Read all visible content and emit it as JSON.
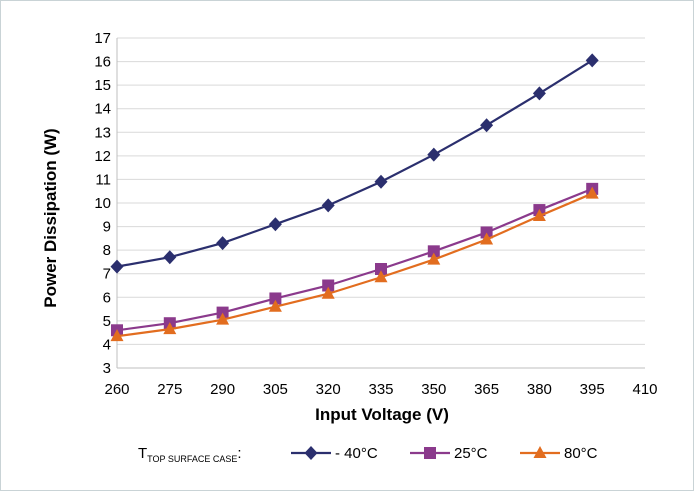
{
  "chart_data": {
    "type": "line",
    "xlabel": "Input Voltage (V)",
    "ylabel": "Power Dissipation (W)",
    "x": [
      260,
      275,
      290,
      305,
      320,
      335,
      350,
      365,
      380,
      395,
      410
    ],
    "xlim": [
      260,
      410
    ],
    "ylim": [
      3,
      17
    ],
    "yticks": [
      3,
      4,
      5,
      6,
      7,
      8,
      9,
      10,
      11,
      12,
      13,
      14,
      15,
      16,
      17
    ],
    "grid": "horizontal",
    "legend": {
      "placement": "bottom",
      "prefix_main": "T",
      "prefix_sub": "TOP SURFACE CASE",
      "prefix_suffix": ":"
    },
    "series": [
      {
        "name": "- 40°C",
        "color": "#2b2f6e",
        "marker": "diamond",
        "values": [
          7.3,
          7.7,
          8.3,
          9.1,
          9.9,
          10.9,
          12.05,
          13.3,
          14.65,
          16.05,
          null
        ]
      },
      {
        "name": "25°C",
        "color": "#8b3a8c",
        "marker": "square",
        "values": [
          4.6,
          4.9,
          5.35,
          5.95,
          6.5,
          7.2,
          7.95,
          8.75,
          9.7,
          10.6,
          null
        ]
      },
      {
        "name": "80°C",
        "color": "#e26d1f",
        "marker": "triangle",
        "values": [
          4.35,
          4.65,
          5.05,
          5.6,
          6.15,
          6.85,
          7.6,
          8.45,
          9.45,
          10.4,
          null
        ]
      }
    ]
  }
}
